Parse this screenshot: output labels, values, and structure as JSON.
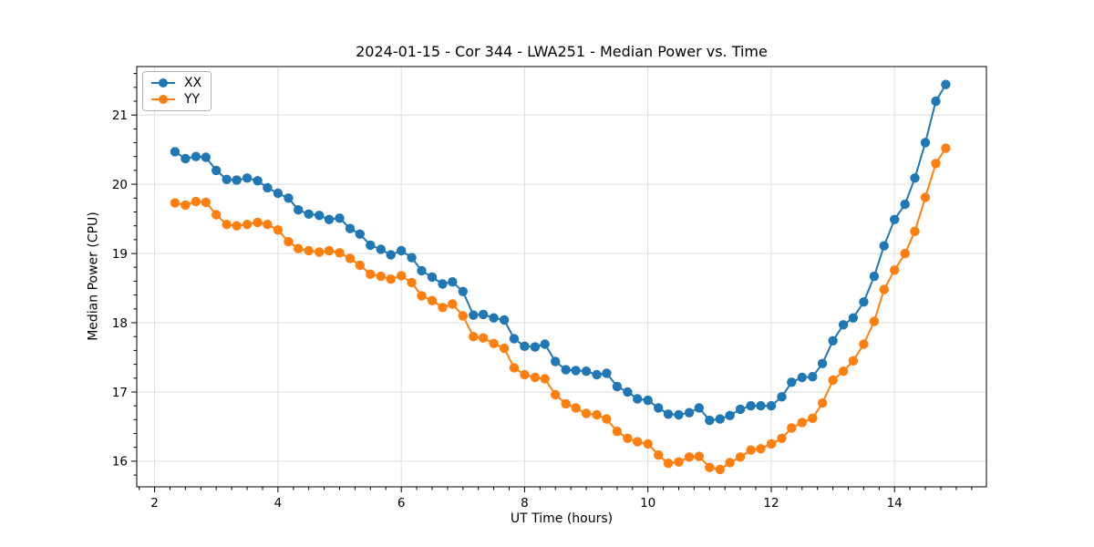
{
  "chart_data": {
    "type": "line",
    "title": "2024-01-15 - Cor 344 - LWA251 - Median Power vs. Time",
    "xlabel": "UT Time (hours)",
    "ylabel": "Median Power (CPU)",
    "legend": {
      "position": "upper left",
      "entries": [
        "XX",
        "YY"
      ]
    },
    "axes": {
      "xlim": [
        1.71,
        15.49
      ],
      "ylim": [
        15.63,
        21.7
      ],
      "xticks": [
        2,
        4,
        6,
        8,
        10,
        12,
        14
      ],
      "yticks": [
        16,
        17,
        18,
        19,
        20,
        21
      ],
      "x_minor_step": 0.25,
      "y_minor_step": 0.2,
      "grid": true,
      "grid_color": "#dedede",
      "spine_color": "#000000",
      "background": "#ffffff"
    },
    "marker": "circle",
    "x": [
      2.33,
      2.5,
      2.67,
      2.83,
      3,
      3.17,
      3.33,
      3.5,
      3.67,
      3.83,
      4,
      4.17,
      4.33,
      4.5,
      4.67,
      4.83,
      5,
      5.17,
      5.33,
      5.5,
      5.67,
      5.83,
      6,
      6.17,
      6.33,
      6.5,
      6.67,
      6.83,
      7,
      7.17,
      7.33,
      7.5,
      7.67,
      7.83,
      8,
      8.17,
      8.33,
      8.5,
      8.67,
      8.83,
      9,
      9.17,
      9.33,
      9.5,
      9.67,
      9.83,
      10,
      10.17,
      10.33,
      10.5,
      10.67,
      10.83,
      11,
      11.17,
      11.33,
      11.5,
      11.67,
      11.83,
      12,
      12.17,
      12.33,
      12.5,
      12.67,
      12.83,
      13,
      13.17,
      13.33,
      13.5,
      13.67,
      13.83,
      14,
      14.17,
      14.33,
      14.5,
      14.67,
      14.83
    ],
    "series": [
      {
        "name": "XX",
        "color": "#1f77b4",
        "values": [
          20.47,
          20.37,
          20.4,
          20.39,
          20.2,
          20.07,
          20.06,
          20.09,
          20.05,
          19.95,
          19.87,
          19.8,
          19.63,
          19.57,
          19.55,
          19.49,
          19.51,
          19.36,
          19.28,
          19.12,
          19.06,
          18.98,
          19.04,
          18.94,
          18.75,
          18.66,
          18.56,
          18.59,
          18.45,
          18.11,
          18.12,
          18.07,
          18.04,
          17.77,
          17.66,
          17.65,
          17.69,
          17.44,
          17.32,
          17.31,
          17.3,
          17.25,
          17.27,
          17.08,
          17,
          16.9,
          16.88,
          16.77,
          16.68,
          16.67,
          16.7,
          16.77,
          16.59,
          16.61,
          16.66,
          16.75,
          16.8,
          16.8,
          16.8,
          16.93,
          17.14,
          17.21,
          17.22,
          17.41,
          17.74,
          17.97,
          18.07,
          18.3,
          18.67,
          19.11,
          19.49,
          19.71,
          20.09,
          20.6,
          21.2,
          21.44
        ]
      },
      {
        "name": "YY",
        "color": "#ff7f0e",
        "values": [
          19.73,
          19.7,
          19.75,
          19.74,
          19.56,
          19.42,
          19.4,
          19.42,
          19.45,
          19.42,
          19.34,
          19.17,
          19.07,
          19.04,
          19.02,
          19.04,
          19.01,
          18.93,
          18.83,
          18.7,
          18.67,
          18.63,
          18.68,
          18.58,
          18.39,
          18.32,
          18.22,
          18.27,
          18.1,
          17.8,
          17.78,
          17.7,
          17.63,
          17.35,
          17.25,
          17.21,
          17.19,
          16.96,
          16.83,
          16.77,
          16.69,
          16.67,
          16.61,
          16.43,
          16.33,
          16.28,
          16.25,
          16.09,
          15.97,
          15.99,
          16.06,
          16.07,
          15.91,
          15.88,
          15.98,
          16.06,
          16.16,
          16.18,
          16.25,
          16.33,
          16.48,
          16.56,
          16.62,
          16.84,
          17.17,
          17.3,
          17.45,
          17.69,
          18.02,
          18.48,
          18.76,
          19,
          19.32,
          19.81,
          20.3,
          20.52
        ]
      }
    ]
  }
}
